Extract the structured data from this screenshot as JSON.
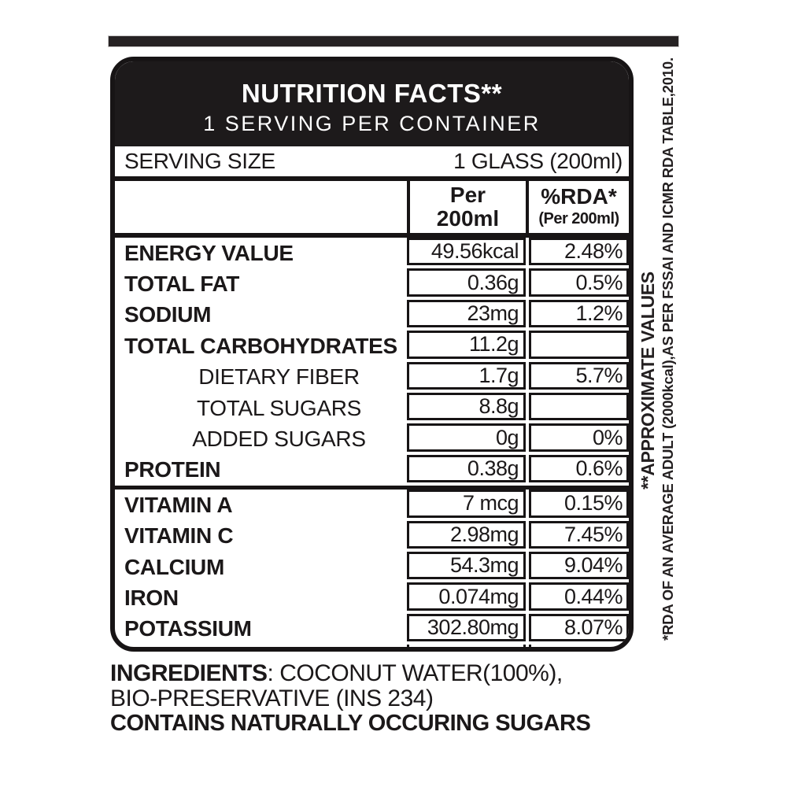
{
  "header": {
    "title": "NUTRITION FACTS**",
    "subtitle": "1 SERVING PER CONTAINER"
  },
  "serving": {
    "label": "SERVING SIZE",
    "value": "1 GLASS (200ml)"
  },
  "columns": {
    "per_line1": "Per",
    "per_line2": "200ml",
    "rda_line1": "%RDA*",
    "rda_line2": "(Per 200ml)"
  },
  "rows": [
    {
      "label": "ENERGY VALUE",
      "value": "49.56kcal",
      "rda": "2.48%"
    },
    {
      "label": "TOTAL FAT",
      "value": "0.36g",
      "rda": "0.5%"
    },
    {
      "label": "SODIUM",
      "value": "23mg",
      "rda": "1.2%"
    },
    {
      "label": "TOTAL CARBOHYDRATES",
      "value": "11.2g",
      "rda": ""
    },
    {
      "label": "DIETARY FIBER",
      "value": "1.7g",
      "rda": "5.7%"
    },
    {
      "label": "TOTAL SUGARS",
      "value": "8.8g",
      "rda": ""
    },
    {
      "label": "ADDED SUGARS",
      "value": "0g",
      "rda": "0%"
    },
    {
      "label": "PROTEIN",
      "value": "0.38g",
      "rda": "0.6%"
    },
    {
      "label": "VITAMIN A",
      "value": "7 mcg",
      "rda": "0.15%"
    },
    {
      "label": "VITAMIN C",
      "value": "2.98mg",
      "rda": "7.45%"
    },
    {
      "label": "CALCIUM",
      "value": "54.3mg",
      "rda": "9.04%"
    },
    {
      "label": "IRON",
      "value": "0.074mg",
      "rda": "0.44%"
    },
    {
      "label": "POTASSIUM",
      "value": "302.80mg",
      "rda": "8.07%"
    }
  ],
  "notes": {
    "approx": "**APPROXIMATE VALUES",
    "rda": "*RDA OF AN AVERAGE ADULT (2000kcal),AS PER FSSAI AND ICMR RDA TABLE,2010."
  },
  "ingredients": {
    "bold_label": "INGREDIENTS",
    "line1_rest": ": COCONUT WATER(100%),",
    "line2": "BIO-PRESERVATIVE (INS 234)",
    "line3": "CONTAINS NATURALLY OCCURING SUGARS"
  },
  "colors": {
    "ink": "#171415",
    "header_black": "#1d1a1b",
    "topbar": "#262223",
    "background": "#ffffff"
  }
}
